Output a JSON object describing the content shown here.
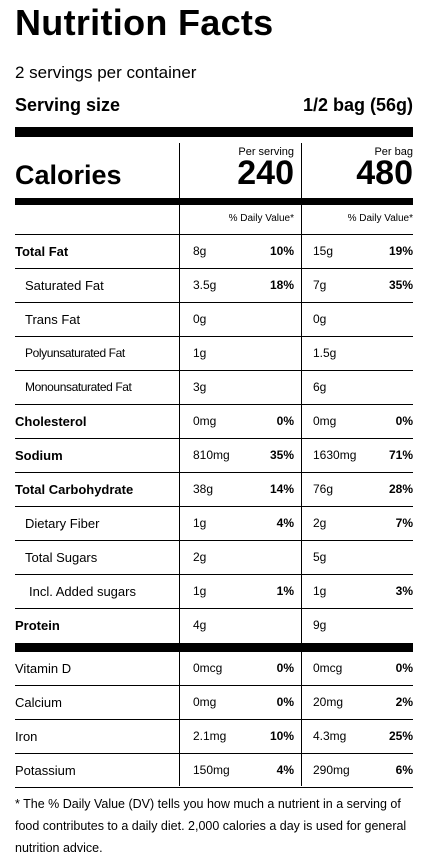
{
  "header": {
    "title": "Nutrition Facts",
    "servings_per_container": "2 servings per container",
    "serving_size_label": "Serving size",
    "serving_size_value": "1/2 bag (56g)"
  },
  "calories": {
    "label": "Calories",
    "per_serving_label": "Per serving",
    "per_serving_value": "240",
    "per_bag_label": "Per bag",
    "per_bag_value": "480"
  },
  "dv_header": "% Daily Value*",
  "nutrients": [
    {
      "label": "Total Fat",
      "serving_amount": "8g",
      "serving_dv": "10%",
      "bag_amount": "15g",
      "bag_dv": "19%"
    },
    {
      "label": "Saturated Fat",
      "serving_amount": "3.5g",
      "serving_dv": "18%",
      "bag_amount": "7g",
      "bag_dv": "35%"
    },
    {
      "label": "Trans Fat",
      "serving_amount": "0g",
      "serving_dv": "",
      "bag_amount": "0g",
      "bag_dv": ""
    },
    {
      "label": "Polyunsaturated Fat",
      "serving_amount": "1g",
      "serving_dv": "",
      "bag_amount": "1.5g",
      "bag_dv": ""
    },
    {
      "label": "Monounsaturated Fat",
      "serving_amount": "3g",
      "serving_dv": "",
      "bag_amount": "6g",
      "bag_dv": ""
    },
    {
      "label": "Cholesterol",
      "serving_amount": "0mg",
      "serving_dv": "0%",
      "bag_amount": "0mg",
      "bag_dv": "0%"
    },
    {
      "label": "Sodium",
      "serving_amount": "810mg",
      "serving_dv": "35%",
      "bag_amount": "1630mg",
      "bag_dv": "71%"
    },
    {
      "label": "Total Carbohydrate",
      "serving_amount": "38g",
      "serving_dv": "14%",
      "bag_amount": "76g",
      "bag_dv": "28%"
    },
    {
      "label": "Dietary Fiber",
      "serving_amount": "1g",
      "serving_dv": "4%",
      "bag_amount": "2g",
      "bag_dv": "7%"
    },
    {
      "label": "Total Sugars",
      "serving_amount": "2g",
      "serving_dv": "",
      "bag_amount": "5g",
      "bag_dv": ""
    },
    {
      "label": "Incl. Added sugars",
      "serving_amount": "1g",
      "serving_dv": "1%",
      "bag_amount": "1g",
      "bag_dv": "3%"
    },
    {
      "label": "Protein",
      "serving_amount": "4g",
      "serving_dv": "",
      "bag_amount": "9g",
      "bag_dv": ""
    }
  ],
  "vitamins": [
    {
      "label": "Vitamin D",
      "serving_amount": "0mcg",
      "serving_dv": "0%",
      "bag_amount": "0mcg",
      "bag_dv": "0%"
    },
    {
      "label": "Calcium",
      "serving_amount": "0mg",
      "serving_dv": "0%",
      "bag_amount": "20mg",
      "bag_dv": "2%"
    },
    {
      "label": "Iron",
      "serving_amount": "2.1mg",
      "serving_dv": "10%",
      "bag_amount": "4.3mg",
      "bag_dv": "25%"
    },
    {
      "label": "Potassium",
      "serving_amount": "150mg",
      "serving_dv": "4%",
      "bag_amount": "290mg",
      "bag_dv": "6%"
    }
  ],
  "footnote": "* The % Daily Value (DV) tells you how much a nutrient in a serving of food contributes to a daily diet. 2,000 calories a day is used for general nutrition advice."
}
